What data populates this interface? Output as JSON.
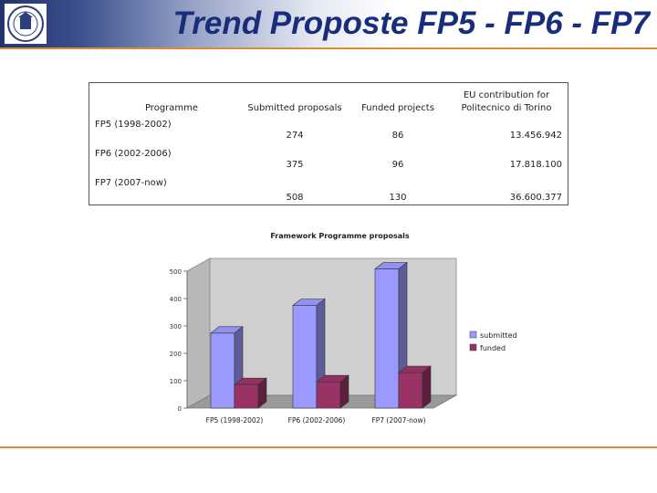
{
  "slide": {
    "title": "Trend Proposte FP5 - FP6 - FP7"
  },
  "table": {
    "headers": [
      "Programme",
      "Submitted proposals",
      "Funded projects",
      "EU contribution for",
      "Politecnico di Torino"
    ],
    "rows": [
      {
        "programme": "FP5 (1998-2002)",
        "submitted": "274",
        "funded": "86",
        "eu": "13.456.942"
      },
      {
        "programme": "FP6 (2002-2006)",
        "submitted": "375",
        "funded": "96",
        "eu": "17.818.100"
      },
      {
        "programme": "FP7 (2007-now)",
        "submitted": "508",
        "funded": "130",
        "eu": "36.600.377"
      }
    ]
  },
  "chart_data": {
    "type": "bar",
    "title": "Framework Programme proposals",
    "categories": [
      "FP5 (1998-2002)",
      "FP6 (2002-2006)",
      "FP7 (2007-now)"
    ],
    "series": [
      {
        "name": "submitted",
        "values": [
          274,
          375,
          508
        ],
        "color": "#9999ff"
      },
      {
        "name": "funded",
        "values": [
          86,
          96,
          130
        ],
        "color": "#993366"
      }
    ],
    "ylim": [
      0,
      500
    ],
    "yticks": [
      "0",
      "100",
      "200",
      "300",
      "400",
      "500"
    ],
    "legend": "right",
    "grid": false
  }
}
